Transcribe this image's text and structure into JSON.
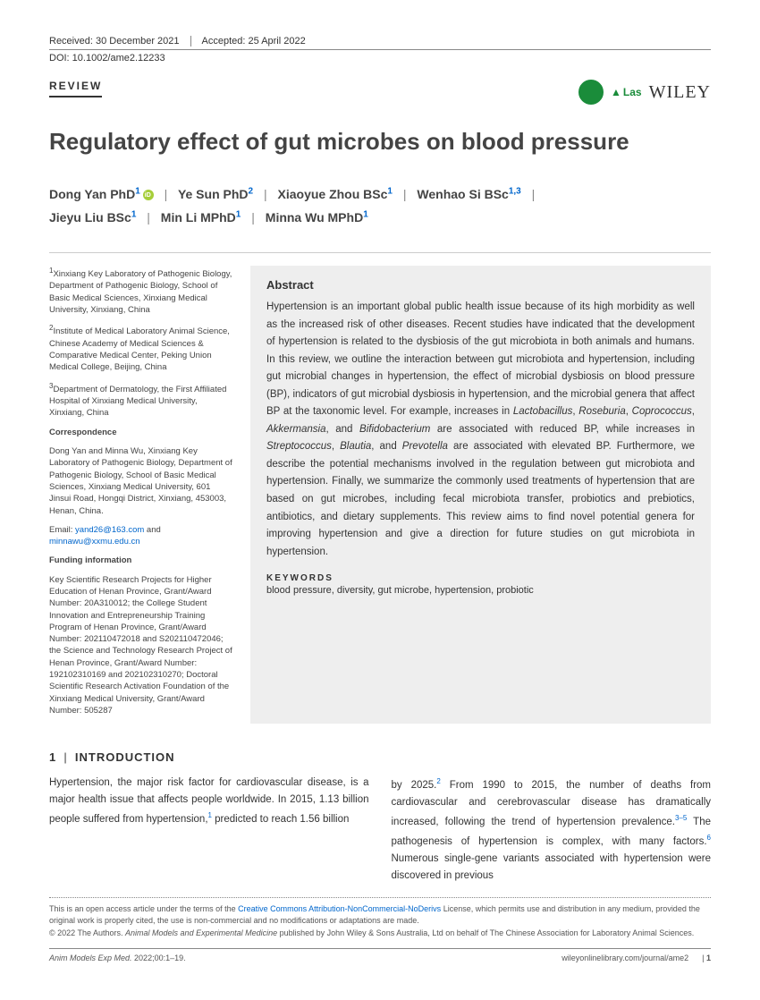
{
  "meta": {
    "received": "Received: 30 December 2021",
    "accepted": "Accepted: 25 April 2022",
    "doi": "DOI: 10.1002/ame2.12233",
    "articleType": "REVIEW",
    "wiley": "WILEY",
    "las": "Las"
  },
  "title": "Regulatory effect of gut microbes on blood pressure",
  "authors": {
    "a1_name": "Dong Yan PhD",
    "a1_sup": "1",
    "a2_name": "Ye Sun PhD",
    "a2_sup": "2",
    "a3_name": "Xiaoyue Zhou BSc",
    "a3_sup": "1",
    "a4_name": "Wenhao Si BSc",
    "a4_sup": "1,3",
    "a5_name": "Jieyu Liu BSc",
    "a5_sup": "1",
    "a6_name": "Min Li MPhD",
    "a6_sup": "1",
    "a7_name": "Minna Wu MPhD",
    "a7_sup": "1"
  },
  "affiliations": {
    "a1": "Xinxiang Key Laboratory of Pathogenic Biology, Department of Pathogenic Biology, School of Basic Medical Sciences, Xinxiang Medical University, Xinxiang, China",
    "a2": "Institute of Medical Laboratory Animal Science, Chinese Academy of Medical Sciences & Comparative Medical Center, Peking Union Medical College, Beijing, China",
    "a3": "Department of Dermatology, the First Affiliated Hospital of Xinxiang Medical University, Xinxiang, China",
    "corr_label": "Correspondence",
    "corr_text": "Dong Yan and Minna Wu, Xinxiang Key Laboratory of Pathogenic Biology, Department of Pathogenic Biology, School of Basic Medical Sciences, Xinxiang Medical University, 601 Jinsui Road, Hongqi District, Xinxiang, 453003, Henan, China.",
    "email_prefix": "Email: ",
    "email1": "yand26@163.com",
    "email_and": " and ",
    "email2": "minnawu@xxmu.edu.cn",
    "fund_label": "Funding information",
    "fund_text": "Key Scientific Research Projects for Higher Education of Henan Province, Grant/Award Number: 20A310012; the College Student Innovation and Entrepreneurship Training Program of Henan Province, Grant/Award Number: 202110472018 and S202110472046; the Science and Technology Research Project of Henan Province, Grant/Award Number: 192102310169 and 202102310270; Doctoral Scientific Research Activation Foundation of the Xinxiang Medical University, Grant/Award Number: 505287"
  },
  "abstract": {
    "heading": "Abstract",
    "p1": "Hypertension is an important global public health issue because of its high morbidity as well as the increased risk of other diseases. Recent studies have indicated that the development of hypertension is related to the dysbiosis of the gut microbiota in both animals and humans. In this review, we outline the interaction between gut microbiota and hypertension, including gut microbial changes in hypertension, the effect of microbial dysbiosis on blood pressure (BP), indicators of gut microbial dysbiosis in hypertension, and the microbial genera that affect BP at the taxonomic level. For example, increases in ",
    "it1": "Lactobacillus",
    "c1": ", ",
    "it2": "Roseburia",
    "c2": ", ",
    "it3": "Coprococcus",
    "c3": ", ",
    "it4": "Akkermansia",
    "c4": ", and ",
    "it5": "Bifidobacterium",
    "p2": " are associated with reduced BP, while increases in ",
    "it6": "Streptococcus",
    "c5": ", ",
    "it7": "Blautia",
    "c6": ", and ",
    "it8": "Prevotella",
    "p3": " are associated with elevated BP. Furthermore, we describe the potential mechanisms involved in the regulation between gut microbiota and hypertension. Finally, we summarize the commonly used treatments of hypertension that are based on gut microbes, including fecal microbiota transfer, probiotics and prebiotics, antibiotics, and dietary supplements. This review aims to find novel potential genera for improving hypertension and give a direction for future studies on gut microbiota in hypertension.",
    "kw_label": "KEYWORDS",
    "kw_text": "blood pressure, diversity, gut microbe, hypertension, probiotic"
  },
  "intro": {
    "heading_num": "1",
    "heading_text": "INTRODUCTION",
    "col1_a": "Hypertension, the major risk factor for cardiovascular disease, is a major health issue that affects people worldwide. In 2015, 1.13 billion people suffered from hypertension,",
    "col1_ref1": "1",
    "col1_b": " predicted to reach 1.56 billion",
    "col2_a": "by 2025.",
    "col2_ref2": "2",
    "col2_b": " From 1990 to 2015, the number of deaths from cardiovascular and cerebrovascular disease has dramatically increased, following the trend of hypertension prevalence.",
    "col2_ref3": "3–5",
    "col2_c": " The pathogenesis of hypertension is complex, with many factors.",
    "col2_ref6": "6",
    "col2_d": " Numerous single-gene variants associated with hypertension were discovered in previous"
  },
  "license": {
    "line1a": "This is an open access article under the terms of the ",
    "line1link": "Creative Commons Attribution-NonCommercial-NoDerivs",
    "line1b": " License, which permits use and distribution in any medium, provided the original work is properly cited, the use is non-commercial and no modifications or adaptations are made.",
    "line2a": "© 2022 The Authors. ",
    "line2it": "Animal Models and Experimental Medicine",
    "line2b": " published by John Wiley & Sons Australia, Ltd on behalf of The Chinese Association for Laboratory Animal Sciences."
  },
  "footer": {
    "left_it": "Anim Models Exp Med.",
    "left_rest": " 2022;00:1–19.",
    "url": "wileyonlinelibrary.com/journal/ame2",
    "page": "1"
  }
}
